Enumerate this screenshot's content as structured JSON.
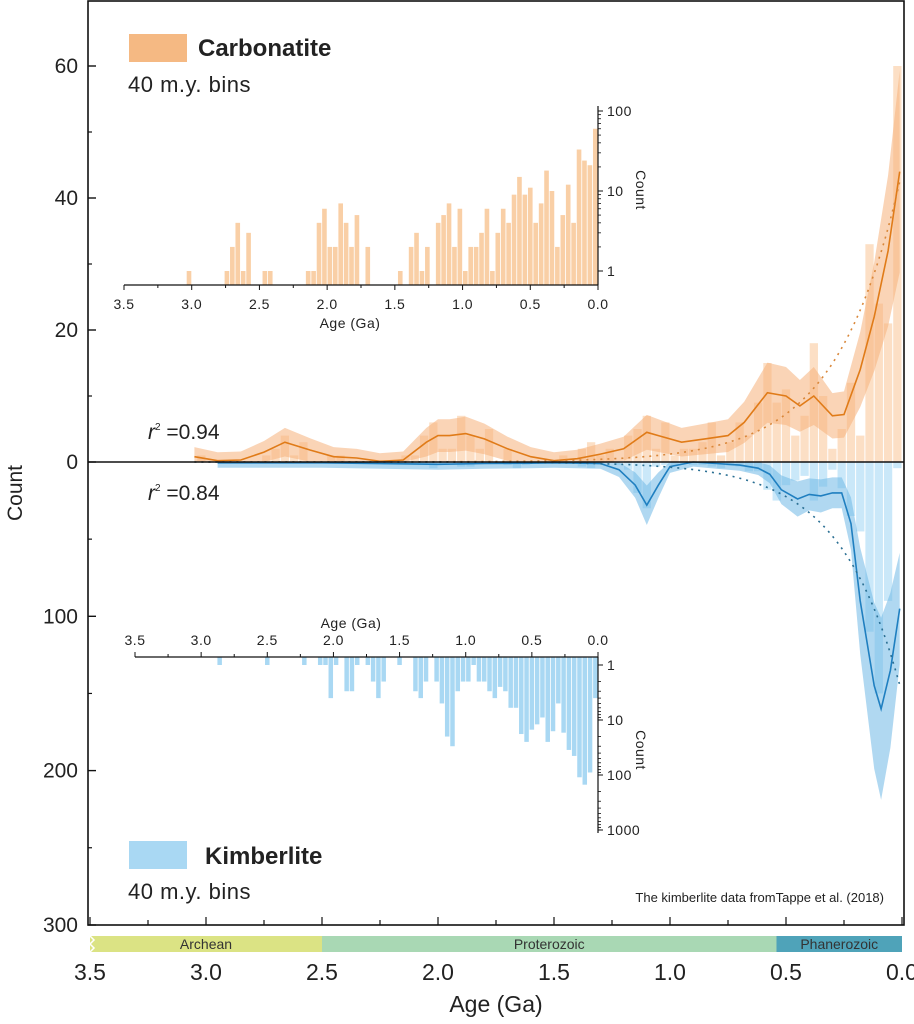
{
  "chart_data": {
    "type": "bar",
    "description": "Mirrored histogram of carbonatite (up) and kimberlite (down) counts vs age with smoothed curves, confidence bands, exponential fits and log-scale insets",
    "xlabel": "Age (Ga)",
    "ylabel": "Count",
    "xlim": [
      3.5,
      0.0
    ],
    "x_ticks": [
      "3.5",
      "3.0",
      "2.5",
      "2.0",
      "1.5",
      "1.0",
      "0.5",
      "0.0"
    ],
    "y_upper": {
      "range": [
        0,
        70
      ],
      "ticks": [
        "0",
        "20",
        "40",
        "60"
      ]
    },
    "y_lower": {
      "range": [
        0,
        300
      ],
      "ticks": [
        "100",
        "200",
        "300"
      ]
    },
    "bin_width_ga": 0.04,
    "series": [
      {
        "name": "Carbonatite",
        "direction": "up",
        "color": "#f5b983",
        "line_color": "#e07b18",
        "legend_label": "Carbonatite",
        "legend_sub": "40 m.y. bins",
        "r2_label": "0.94",
        "bars": [
          [
            3.02,
            1
          ],
          [
            2.74,
            1
          ],
          [
            2.7,
            2
          ],
          [
            2.66,
            4
          ],
          [
            2.62,
            1
          ],
          [
            2.58,
            3
          ],
          [
            2.46,
            1
          ],
          [
            2.42,
            1
          ],
          [
            2.14,
            1
          ],
          [
            2.1,
            1
          ],
          [
            2.06,
            4
          ],
          [
            2.02,
            6
          ],
          [
            1.98,
            2
          ],
          [
            1.94,
            2
          ],
          [
            1.9,
            7
          ],
          [
            1.86,
            4
          ],
          [
            1.82,
            2
          ],
          [
            1.78,
            5
          ],
          [
            1.7,
            2
          ],
          [
            1.46,
            1
          ],
          [
            1.38,
            2
          ],
          [
            1.34,
            3
          ],
          [
            1.3,
            1
          ],
          [
            1.26,
            2
          ],
          [
            1.18,
            4
          ],
          [
            1.14,
            5
          ],
          [
            1.1,
            7
          ],
          [
            1.06,
            2
          ],
          [
            1.02,
            6
          ],
          [
            0.98,
            1
          ],
          [
            0.94,
            2
          ],
          [
            0.9,
            2
          ],
          [
            0.86,
            3
          ],
          [
            0.82,
            6
          ],
          [
            0.78,
            1
          ],
          [
            0.74,
            3
          ],
          [
            0.7,
            6
          ],
          [
            0.66,
            4
          ],
          [
            0.62,
            9
          ],
          [
            0.58,
            15
          ],
          [
            0.54,
            9
          ],
          [
            0.5,
            11
          ],
          [
            0.46,
            4
          ],
          [
            0.42,
            7
          ],
          [
            0.38,
            18
          ],
          [
            0.34,
            10
          ],
          [
            0.3,
            2
          ],
          [
            0.26,
            5
          ],
          [
            0.22,
            12
          ],
          [
            0.18,
            4
          ],
          [
            0.14,
            33
          ],
          [
            0.1,
            24
          ],
          [
            0.06,
            21
          ],
          [
            0.02,
            60
          ]
        ],
        "smooth": [
          [
            3.05,
            0.8
          ],
          [
            2.95,
            0.2
          ],
          [
            2.85,
            0.3
          ],
          [
            2.75,
            1.5
          ],
          [
            2.66,
            3.0
          ],
          [
            2.55,
            1.8
          ],
          [
            2.45,
            0.8
          ],
          [
            2.35,
            0.6
          ],
          [
            2.25,
            0.1
          ],
          [
            2.15,
            0.3
          ],
          [
            2.05,
            3.0
          ],
          [
            2.0,
            4.0
          ],
          [
            1.95,
            4.0
          ],
          [
            1.88,
            4.3
          ],
          [
            1.8,
            3.5
          ],
          [
            1.7,
            2.0
          ],
          [
            1.6,
            0.8
          ],
          [
            1.5,
            0.2
          ],
          [
            1.4,
            0.5
          ],
          [
            1.3,
            1.2
          ],
          [
            1.2,
            2.0
          ],
          [
            1.1,
            4.5
          ],
          [
            1.05,
            4.0
          ],
          [
            0.95,
            3.0
          ],
          [
            0.85,
            3.5
          ],
          [
            0.75,
            4.0
          ],
          [
            0.68,
            6.0
          ],
          [
            0.58,
            10.5
          ],
          [
            0.5,
            10.0
          ],
          [
            0.44,
            8.5
          ],
          [
            0.38,
            10.0
          ],
          [
            0.3,
            7.0
          ],
          [
            0.25,
            7.2
          ],
          [
            0.18,
            14
          ],
          [
            0.12,
            22
          ],
          [
            0.06,
            32
          ],
          [
            0.01,
            44
          ]
        ],
        "band_halfwidth": 2.5,
        "fit": "exponential"
      },
      {
        "name": "Kimberlite",
        "direction": "down",
        "color": "#a9d8f3",
        "line_color": "#1f7fc0",
        "legend_label": "Kimberlite",
        "legend_sub": "40 m.y. bins",
        "r2_label": "0.84",
        "bars": [
          [
            2.86,
            1
          ],
          [
            2.5,
            1
          ],
          [
            2.22,
            1
          ],
          [
            2.1,
            1
          ],
          [
            2.06,
            1
          ],
          [
            2.02,
            4
          ],
          [
            1.98,
            1
          ],
          [
            1.9,
            3
          ],
          [
            1.86,
            3
          ],
          [
            1.82,
            1
          ],
          [
            1.74,
            1
          ],
          [
            1.7,
            2
          ],
          [
            1.66,
            4
          ],
          [
            1.62,
            2
          ],
          [
            1.5,
            1
          ],
          [
            1.38,
            3
          ],
          [
            1.34,
            4
          ],
          [
            1.3,
            2
          ],
          [
            1.22,
            2
          ],
          [
            1.18,
            5
          ],
          [
            1.14,
            20
          ],
          [
            1.1,
            30
          ],
          [
            1.06,
            3
          ],
          [
            1.02,
            2
          ],
          [
            0.98,
            2
          ],
          [
            0.94,
            1
          ],
          [
            0.9,
            2
          ],
          [
            0.86,
            2
          ],
          [
            0.82,
            3
          ],
          [
            0.78,
            4
          ],
          [
            0.74,
            2.5
          ],
          [
            0.7,
            3
          ],
          [
            0.66,
            6
          ],
          [
            0.62,
            6
          ],
          [
            0.58,
            18
          ],
          [
            0.54,
            25
          ],
          [
            0.5,
            15
          ],
          [
            0.46,
            12
          ],
          [
            0.42,
            9
          ],
          [
            0.38,
            25
          ],
          [
            0.34,
            16
          ],
          [
            0.3,
            5
          ],
          [
            0.26,
            17
          ],
          [
            0.22,
            35
          ],
          [
            0.18,
            45
          ],
          [
            0.14,
            110
          ],
          [
            0.1,
            150
          ],
          [
            0.06,
            90
          ],
          [
            0.02,
            4
          ]
        ],
        "smooth": [
          [
            2.95,
            0.5
          ],
          [
            2.5,
            0.5
          ],
          [
            2.0,
            1.5
          ],
          [
            1.8,
            1
          ],
          [
            1.6,
            0.8
          ],
          [
            1.5,
            0.5
          ],
          [
            1.3,
            1
          ],
          [
            1.22,
            5
          ],
          [
            1.15,
            15
          ],
          [
            1.1,
            28
          ],
          [
            1.05,
            15
          ],
          [
            1.0,
            3
          ],
          [
            0.9,
            0
          ],
          [
            0.8,
            1
          ],
          [
            0.7,
            2
          ],
          [
            0.62,
            4
          ],
          [
            0.57,
            8
          ],
          [
            0.52,
            18
          ],
          [
            0.45,
            24
          ],
          [
            0.4,
            21
          ],
          [
            0.35,
            22
          ],
          [
            0.3,
            20
          ],
          [
            0.26,
            20
          ],
          [
            0.22,
            40
          ],
          [
            0.18,
            90
          ],
          [
            0.12,
            145
          ],
          [
            0.09,
            160
          ],
          [
            0.05,
            135
          ],
          [
            0.01,
            95
          ]
        ],
        "fit": "exponential"
      }
    ],
    "insets": [
      {
        "name": "Carbonatite log histogram",
        "xlabel": "Age (Ga)",
        "ylabel": "Count",
        "yscale": "log",
        "y_ticks": [
          "1",
          "10",
          "100"
        ],
        "x_ticks": [
          "3.5",
          "3.0",
          "2.5",
          "2.0",
          "1.5",
          "1.0",
          "0.5",
          "0.0"
        ]
      },
      {
        "name": "Kimberlite log histogram",
        "xlabel": "Age (Ga)",
        "ylabel": "Count",
        "yscale": "log",
        "y_ticks": [
          "1",
          "10",
          "100",
          "1000"
        ],
        "x_ticks": [
          "3.5",
          "3.0",
          "2.5",
          "2.0",
          "1.5",
          "1.0",
          "0.5",
          "0.0"
        ]
      }
    ],
    "eras": [
      {
        "name": "Archean",
        "from": 3.5,
        "to": 2.5,
        "color": "#dbe384"
      },
      {
        "name": "Proterozoic",
        "from": 2.5,
        "to": 0.541,
        "color": "#a9d8b4"
      },
      {
        "name": "Phanerozoic",
        "from": 0.541,
        "to": 0.0,
        "color": "#4fa3b9"
      }
    ],
    "annotation": "The kimberlite data fromTappe et al. (2018)"
  },
  "labels": {
    "r2_prefix": "r",
    "r2_sup": "2",
    "r2_eq": " =",
    "carb_r2": "0.94",
    "kimb_r2": "0.84",
    "carb_title": "Carbonatite",
    "carb_sub": "40 m.y. bins",
    "kimb_title": "Kimberlite",
    "kimb_sub": "40 m.y. bins",
    "xlabel": "Age (Ga)",
    "ylabel": "Count",
    "inset_xlabel": "Age (Ga)",
    "inset_ylabel": "Count",
    "note": "The kimberlite data fromTappe et al. (2018)"
  }
}
